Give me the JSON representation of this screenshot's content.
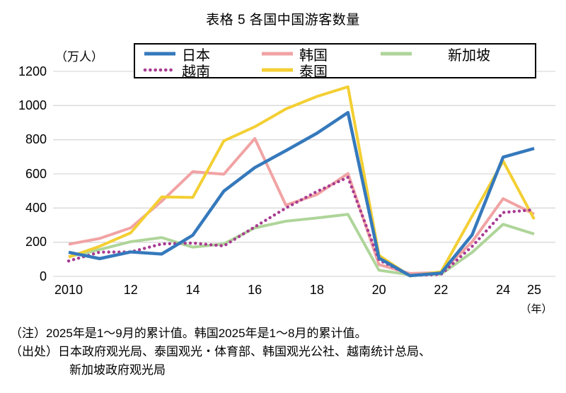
{
  "chart_data": {
    "type": "line",
    "title": "表格 5 各国中国游客数量",
    "unit_label": "（万人）",
    "x_unit_label": "（年）",
    "x": [
      2010,
      2011,
      2012,
      2013,
      2014,
      2015,
      2016,
      2017,
      2018,
      2019,
      2020,
      2021,
      2022,
      2023,
      2024,
      2025
    ],
    "x_tick_years": [
      2010,
      2012,
      2014,
      2016,
      2018,
      2020,
      2022,
      2024,
      2025
    ],
    "x_tick_labels": [
      "2010",
      "12",
      "14",
      "16",
      "18",
      "20",
      "22",
      "24",
      "25"
    ],
    "y_ticks": [
      0,
      200,
      400,
      600,
      800,
      1000,
      1200
    ],
    "ylim": [
      0,
      1200
    ],
    "grid": true,
    "gridline_color": "#d9d9d9",
    "legend_position": "top",
    "values_unit": "万人",
    "series": [
      {
        "name": "日本",
        "color": "#3579bc",
        "line_style": "solid",
        "values": [
          141,
          104,
          143,
          131,
          241,
          499,
          637,
          736,
          838,
          959,
          107,
          4,
          19,
          243,
          698,
          749
        ]
      },
      {
        "name": "韩国",
        "color": "#f1a3a4",
        "line_style": "solid",
        "values": [
          188,
          222,
          284,
          440,
          613,
          598,
          807,
          417,
          479,
          602,
          69,
          17,
          23,
          202,
          455,
          365
        ]
      },
      {
        "name": "新加坡",
        "color": "#afd59a",
        "line_style": "solid",
        "values": [
          115,
          157,
          203,
          227,
          171,
          190,
          284,
          323,
          342,
          363,
          36,
          9,
          13,
          140,
          305,
          248
        ]
      },
      {
        "name": "越南",
        "color": "#a83c92",
        "line_style": "dotted",
        "values": [
          90,
          142,
          143,
          190,
          195,
          178,
          290,
          400,
          497,
          580,
          96,
          5,
          12,
          175,
          374,
          390
        ]
      },
      {
        "name": "泰国",
        "color": "#f3cf33",
        "line_style": "solid",
        "values": [
          113,
          176,
          255,
          465,
          462,
          793,
          876,
          980,
          1053,
          1110,
          123,
          2,
          27,
          352,
          675,
          335
        ]
      }
    ]
  },
  "notes": {
    "note": "（注）2025年是1～9月的累计值。韩国2025年是1～8月的累计值。",
    "source_line1": "（出处）日本政府观光局、泰国观光・体育部、韩国观光公社、越南统计总局、",
    "source_line2": "新加坡政府观光局"
  }
}
